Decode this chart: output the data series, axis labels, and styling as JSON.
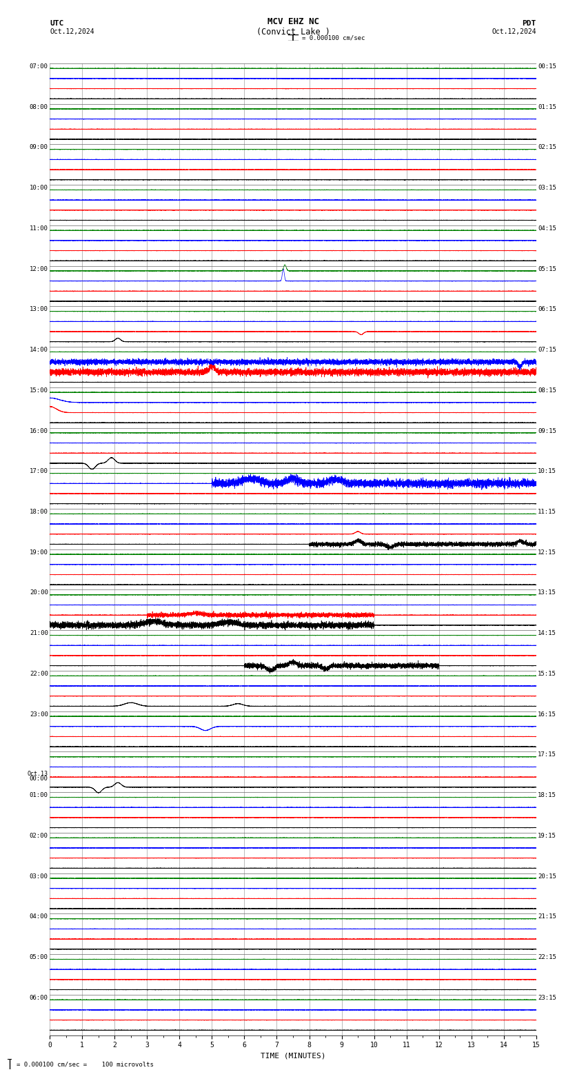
{
  "title_line1": "MCV EHZ NC",
  "title_line2": "(Convict Lake )",
  "scale_text": "= 0.000100 cm/sec",
  "footer_text": "= 0.000100 cm/sec =    100 microvolts",
  "utc_label": "UTC",
  "utc_date": "Oct.12,2024",
  "pdt_label": "PDT",
  "pdt_date": "Oct.12,2024",
  "xlabel": "TIME (MINUTES)",
  "left_times": [
    "07:00",
    "08:00",
    "09:00",
    "10:00",
    "11:00",
    "12:00",
    "13:00",
    "14:00",
    "15:00",
    "16:00",
    "17:00",
    "18:00",
    "19:00",
    "20:00",
    "21:00",
    "22:00",
    "23:00",
    "Oct.13\n00:00",
    "01:00",
    "02:00",
    "03:00",
    "04:00",
    "05:00",
    "06:00"
  ],
  "right_times": [
    "00:15",
    "01:15",
    "02:15",
    "03:15",
    "04:15",
    "05:15",
    "06:15",
    "07:15",
    "08:15",
    "09:15",
    "10:15",
    "11:15",
    "12:15",
    "13:15",
    "14:15",
    "15:15",
    "16:15",
    "17:15",
    "18:15",
    "19:15",
    "20:15",
    "21:15",
    "22:15",
    "23:15"
  ],
  "num_rows": 24,
  "traces_per_row": 4,
  "colors_cycle": [
    "black",
    "red",
    "blue",
    "green"
  ],
  "bg_color": "white",
  "grid_color": "#aaaaaa",
  "line_width": 0.5,
  "noise_base_amp": 0.012,
  "fig_width": 8.5,
  "fig_height": 15.84,
  "dpi": 100,
  "special_events": [
    {
      "row": 5,
      "trace": 2,
      "minute": 7.2,
      "amplitude": 1.2,
      "sigma": 0.03,
      "color": "green"
    },
    {
      "row": 5,
      "trace": 3,
      "minute": 7.25,
      "amplitude": 0.6,
      "sigma": 0.04,
      "color": "black"
    },
    {
      "row": 6,
      "trace": 0,
      "minute": 2.1,
      "amplitude": 0.35,
      "sigma": 0.08,
      "color": "black"
    },
    {
      "row": 6,
      "trace": 1,
      "minute": 9.6,
      "amplitude": -0.3,
      "sigma": 0.07,
      "color": "blue"
    },
    {
      "row": 7,
      "trace": 1,
      "minute": 5.0,
      "amplitude": 0.55,
      "sigma": 0.1,
      "color": "blue"
    },
    {
      "row": 7,
      "trace": 2,
      "minute": 14.5,
      "amplitude": -0.5,
      "sigma": 0.05,
      "color": "green"
    },
    {
      "row": 8,
      "trace": 1,
      "minute": 0.0,
      "amplitude": 0.6,
      "sigma": 0.2,
      "color": "blue"
    },
    {
      "row": 8,
      "trace": 2,
      "minute": 0.0,
      "amplitude": 0.45,
      "sigma": 0.3,
      "color": "green"
    },
    {
      "row": 9,
      "trace": 0,
      "minute": 1.3,
      "amplitude": -0.6,
      "sigma": 0.1,
      "color": "red"
    },
    {
      "row": 9,
      "trace": 0,
      "minute": 1.9,
      "amplitude": 0.55,
      "sigma": 0.1,
      "color": "red"
    },
    {
      "row": 10,
      "trace": 2,
      "minute": 6.2,
      "amplitude": 0.5,
      "sigma": 0.25,
      "color": "green"
    },
    {
      "row": 10,
      "trace": 2,
      "minute": 7.5,
      "amplitude": 0.45,
      "sigma": 0.2,
      "color": "green"
    },
    {
      "row": 10,
      "trace": 2,
      "minute": 8.8,
      "amplitude": 0.4,
      "sigma": 0.2,
      "color": "green"
    },
    {
      "row": 11,
      "trace": 0,
      "minute": 9.5,
      "amplitude": 0.35,
      "sigma": 0.1,
      "color": "red"
    },
    {
      "row": 11,
      "trace": 0,
      "minute": 10.5,
      "amplitude": -0.3,
      "sigma": 0.1,
      "color": "red"
    },
    {
      "row": 11,
      "trace": 0,
      "minute": 14.5,
      "amplitude": 0.3,
      "sigma": 0.1,
      "color": "green"
    },
    {
      "row": 11,
      "trace": 1,
      "minute": 9.5,
      "amplitude": 0.25,
      "sigma": 0.08,
      "color": "black"
    },
    {
      "row": 13,
      "trace": 0,
      "minute": 3.2,
      "amplitude": 0.35,
      "sigma": 0.3,
      "color": "green"
    },
    {
      "row": 13,
      "trace": 0,
      "minute": 5.5,
      "amplitude": 0.3,
      "sigma": 0.25,
      "color": "green"
    },
    {
      "row": 13,
      "trace": 1,
      "minute": 4.5,
      "amplitude": 0.2,
      "sigma": 0.2,
      "color": "red"
    },
    {
      "row": 14,
      "trace": 0,
      "minute": 6.8,
      "amplitude": -0.45,
      "sigma": 0.12,
      "color": "red"
    },
    {
      "row": 14,
      "trace": 0,
      "minute": 7.5,
      "amplitude": 0.4,
      "sigma": 0.1,
      "color": "red"
    },
    {
      "row": 14,
      "trace": 0,
      "minute": 8.5,
      "amplitude": -0.35,
      "sigma": 0.1,
      "color": "red"
    },
    {
      "row": 15,
      "trace": 0,
      "minute": 2.5,
      "amplitude": 0.35,
      "sigma": 0.2,
      "color": "black"
    },
    {
      "row": 15,
      "trace": 0,
      "minute": 5.8,
      "amplitude": 0.25,
      "sigma": 0.15,
      "color": "black"
    },
    {
      "row": 16,
      "trace": 2,
      "minute": 4.8,
      "amplitude": -0.4,
      "sigma": 0.15,
      "color": "blue"
    },
    {
      "row": 17,
      "trace": 0,
      "minute": 1.5,
      "amplitude": -0.55,
      "sigma": 0.1,
      "color": "blue"
    },
    {
      "row": 17,
      "trace": 0,
      "minute": 2.1,
      "amplitude": 0.45,
      "sigma": 0.1,
      "color": "blue"
    }
  ],
  "noisy_rows": [
    {
      "row": 7,
      "trace": 1,
      "amp": 0.15,
      "start": 0.0,
      "end": 15.0
    },
    {
      "row": 7,
      "trace": 2,
      "amp": 0.12,
      "start": 0.0,
      "end": 15.0
    },
    {
      "row": 10,
      "trace": 2,
      "amp": 0.18,
      "start": 5.0,
      "end": 15.0
    },
    {
      "row": 11,
      "trace": 0,
      "amp": 0.1,
      "start": 8.0,
      "end": 15.0
    },
    {
      "row": 13,
      "trace": 0,
      "amp": 0.14,
      "start": 0.0,
      "end": 10.0
    },
    {
      "row": 13,
      "trace": 1,
      "amp": 0.1,
      "start": 3.0,
      "end": 10.0
    },
    {
      "row": 14,
      "trace": 0,
      "amp": 0.12,
      "start": 6.0,
      "end": 12.0
    }
  ]
}
